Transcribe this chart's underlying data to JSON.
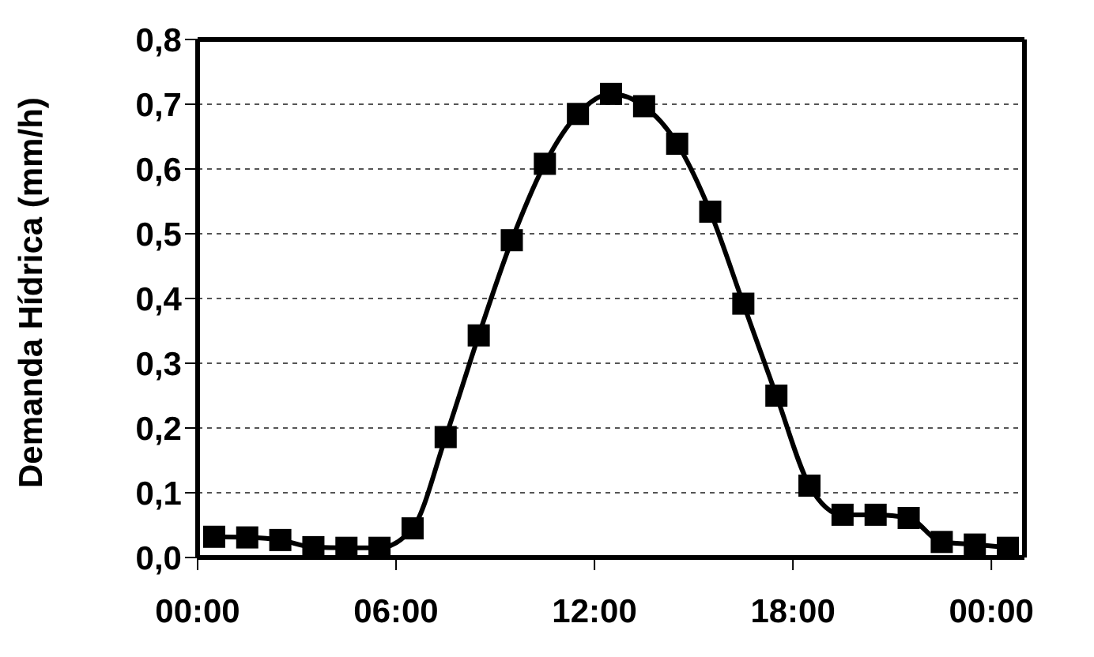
{
  "chart_data": {
    "type": "line",
    "ylabel": "Demanda Hídrica (mm/h)",
    "x": [
      0.5,
      1.5,
      2.5,
      3.5,
      4.5,
      5.5,
      6.5,
      7.5,
      8.5,
      9.5,
      10.5,
      11.5,
      12.5,
      13.5,
      14.5,
      15.5,
      16.5,
      17.5,
      18.5,
      19.5,
      20.5,
      21.5,
      22.5,
      23.5,
      24.5
    ],
    "series": [
      {
        "color": "#000000",
        "values": [
          0.032,
          0.031,
          0.027,
          0.016,
          0.015,
          0.015,
          0.045,
          0.186,
          0.343,
          0.49,
          0.608,
          0.685,
          0.716,
          0.697,
          0.639,
          0.534,
          0.392,
          0.25,
          0.111,
          0.066,
          0.066,
          0.061,
          0.024,
          0.02,
          0.015
        ]
      }
    ],
    "xlim": [
      0,
      25
    ],
    "xticks": [
      {
        "value": 0,
        "label": "00:00"
      },
      {
        "value": 6,
        "label": "06:00"
      },
      {
        "value": 12,
        "label": "12:00"
      },
      {
        "value": 18,
        "label": "18:00"
      },
      {
        "value": 24,
        "label": "00:00"
      }
    ],
    "ylim": [
      0,
      0.8
    ],
    "yticks": [
      {
        "value": 0,
        "label": "0,0"
      },
      {
        "value": 0.1,
        "label": "0,1"
      },
      {
        "value": 0.2,
        "label": "0,2"
      },
      {
        "value": 0.3,
        "label": "0,3"
      },
      {
        "value": 0.4,
        "label": "0,4"
      },
      {
        "value": 0.5,
        "label": "0,5"
      },
      {
        "value": 0.6,
        "label": "0,6"
      },
      {
        "value": 0.7,
        "label": "0,7"
      },
      {
        "value": 0.8,
        "label": "0,8"
      }
    ],
    "grid": "y",
    "marker": "square",
    "line_style": "solid",
    "legend": false
  }
}
